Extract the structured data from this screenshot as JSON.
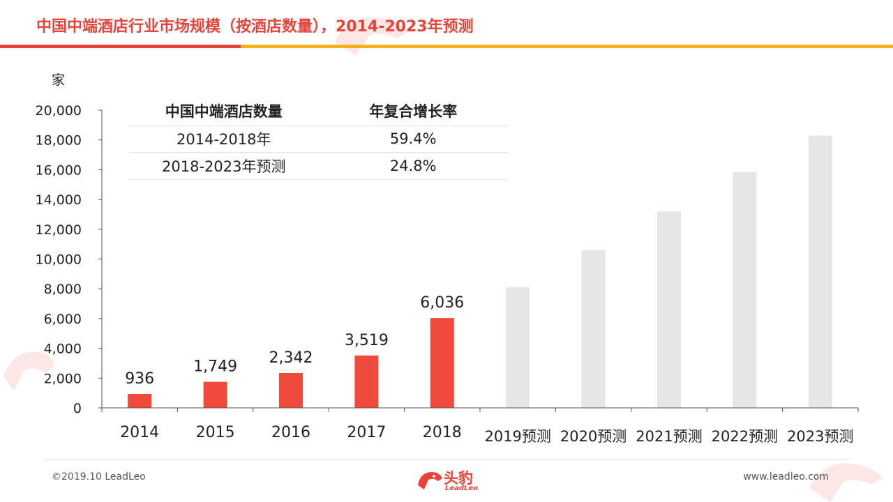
{
  "header": {
    "title": "中国中端酒店行业市场规模（按酒店数量），2014-2023年预测"
  },
  "cagr_table": {
    "headers": [
      "中国中端酒店数量",
      "年复合增长率"
    ],
    "rows": [
      [
        "2014-2018年",
        "59.4%"
      ],
      [
        "2018-2023年预测",
        "24.8%"
      ]
    ]
  },
  "chart_data": {
    "type": "bar",
    "title": "",
    "xlabel": "",
    "ylabel": "家",
    "ylim": [
      0,
      20000
    ],
    "yticks": [
      0,
      2000,
      4000,
      6000,
      8000,
      10000,
      12000,
      14000,
      16000,
      18000,
      20000
    ],
    "ytick_labels": [
      "0",
      "2,000",
      "4,000",
      "6,000",
      "8,000",
      "10,000",
      "12,000",
      "14,000",
      "16,000",
      "18,000",
      "20,000"
    ],
    "categories": [
      "2014",
      "2015",
      "2016",
      "2017",
      "2018",
      "2019预测",
      "2020预测",
      "2021预测",
      "2022预测",
      "2023预测"
    ],
    "values": [
      936,
      1749,
      2342,
      3519,
      6036,
      8100,
      10600,
      13200,
      15850,
      18300
    ],
    "data_labels": [
      "936",
      "1,749",
      "2,342",
      "3,519",
      "6,036",
      "",
      "",
      "",
      "",
      ""
    ],
    "bar_colors": [
      "#ef4a3c",
      "#ef4a3c",
      "#ef4a3c",
      "#ef4a3c",
      "#ef4a3c",
      "#e6e6e6",
      "#e6e6e6",
      "#e6e6e6",
      "#e6e6e6",
      "#e6e6e6"
    ],
    "grid": false,
    "legend": "none"
  },
  "footer": {
    "copyright": "©2019.10 LeadLeo",
    "website": "www.leadleo.com",
    "logo_cn": "头豹",
    "logo_en": "LeadLeo"
  },
  "icons": {
    "logo": "leopard-head-icon",
    "watermark": "leopard-watermark-icon"
  },
  "colors": {
    "accent_red": "#e8433a",
    "accent_yellow": "#f3b21c",
    "forecast_gray": "#e6e6e6"
  }
}
